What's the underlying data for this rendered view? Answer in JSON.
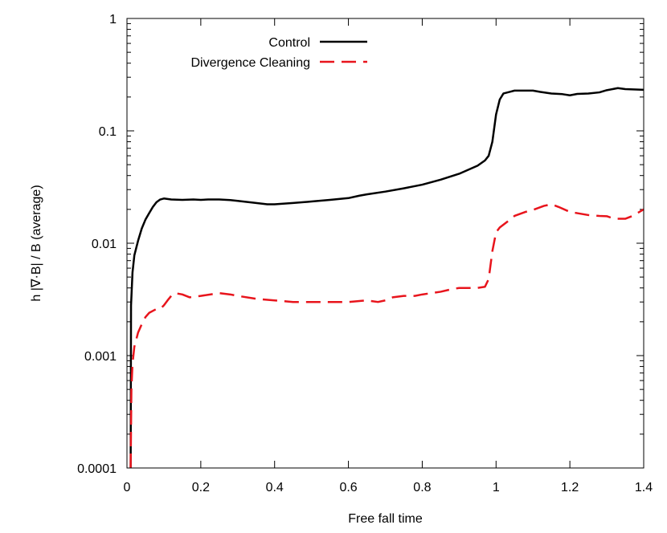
{
  "chart_data": {
    "type": "line",
    "xlabel": "Free fall time",
    "ylabel": "h |∇·B| / B (average)",
    "xlim": [
      0,
      1.4
    ],
    "ylim": [
      0.0001,
      1
    ],
    "yscale": "log",
    "xticks": [
      "0",
      "0.2",
      "0.4",
      "0.6",
      "0.8",
      "1",
      "1.2",
      "1.4"
    ],
    "yticks": [
      "0.0001",
      "0.001",
      "0.01",
      "0.1",
      "1"
    ],
    "legend_position": "top",
    "series": [
      {
        "name": "Control",
        "color": "#000000",
        "style": "solid",
        "points": [
          [
            0.01,
            0.0001
          ],
          [
            0.011,
            0.0028
          ],
          [
            0.015,
            0.0055
          ],
          [
            0.02,
            0.0078
          ],
          [
            0.03,
            0.0105
          ],
          [
            0.04,
            0.0135
          ],
          [
            0.05,
            0.0162
          ],
          [
            0.06,
            0.0185
          ],
          [
            0.07,
            0.021
          ],
          [
            0.08,
            0.0232
          ],
          [
            0.09,
            0.0245
          ],
          [
            0.1,
            0.025
          ],
          [
            0.12,
            0.0245
          ],
          [
            0.15,
            0.0243
          ],
          [
            0.18,
            0.0245
          ],
          [
            0.2,
            0.0243
          ],
          [
            0.22,
            0.0245
          ],
          [
            0.25,
            0.0245
          ],
          [
            0.28,
            0.0242
          ],
          [
            0.3,
            0.0238
          ],
          [
            0.35,
            0.0228
          ],
          [
            0.38,
            0.0222
          ],
          [
            0.4,
            0.0222
          ],
          [
            0.45,
            0.0228
          ],
          [
            0.5,
            0.0235
          ],
          [
            0.55,
            0.0243
          ],
          [
            0.6,
            0.0252
          ],
          [
            0.63,
            0.0265
          ],
          [
            0.65,
            0.0272
          ],
          [
            0.7,
            0.0288
          ],
          [
            0.75,
            0.0308
          ],
          [
            0.8,
            0.0332
          ],
          [
            0.85,
            0.0368
          ],
          [
            0.9,
            0.0415
          ],
          [
            0.95,
            0.049
          ],
          [
            0.97,
            0.0545
          ],
          [
            0.98,
            0.06
          ],
          [
            0.99,
            0.08
          ],
          [
            1.0,
            0.14
          ],
          [
            1.01,
            0.19
          ],
          [
            1.02,
            0.215
          ],
          [
            1.05,
            0.228
          ],
          [
            1.1,
            0.228
          ],
          [
            1.12,
            0.222
          ],
          [
            1.15,
            0.215
          ],
          [
            1.18,
            0.212
          ],
          [
            1.2,
            0.207
          ],
          [
            1.22,
            0.213
          ],
          [
            1.25,
            0.215
          ],
          [
            1.28,
            0.22
          ],
          [
            1.3,
            0.23
          ],
          [
            1.33,
            0.24
          ],
          [
            1.35,
            0.235
          ],
          [
            1.4,
            0.232
          ]
        ]
      },
      {
        "name": "Divergence Cleaning",
        "color": "#e8141c",
        "style": "dashed",
        "points": [
          [
            0.01,
            0.0001
          ],
          [
            0.012,
            0.0005
          ],
          [
            0.015,
            0.00085
          ],
          [
            0.02,
            0.0012
          ],
          [
            0.03,
            0.0016
          ],
          [
            0.04,
            0.0019
          ],
          [
            0.05,
            0.0022
          ],
          [
            0.06,
            0.0024
          ],
          [
            0.07,
            0.0025
          ],
          [
            0.08,
            0.0026
          ],
          [
            0.09,
            0.0026
          ],
          [
            0.1,
            0.0028
          ],
          [
            0.11,
            0.0031
          ],
          [
            0.12,
            0.0034
          ],
          [
            0.13,
            0.0036
          ],
          [
            0.15,
            0.0035
          ],
          [
            0.17,
            0.0033
          ],
          [
            0.2,
            0.0034
          ],
          [
            0.25,
            0.0036
          ],
          [
            0.28,
            0.0035
          ],
          [
            0.3,
            0.0034
          ],
          [
            0.35,
            0.0032
          ],
          [
            0.4,
            0.0031
          ],
          [
            0.45,
            0.003
          ],
          [
            0.5,
            0.003
          ],
          [
            0.55,
            0.003
          ],
          [
            0.6,
            0.003
          ],
          [
            0.65,
            0.0031
          ],
          [
            0.68,
            0.003
          ],
          [
            0.7,
            0.0031
          ],
          [
            0.72,
            0.0033
          ],
          [
            0.75,
            0.0034
          ],
          [
            0.78,
            0.0034
          ],
          [
            0.8,
            0.0035
          ],
          [
            0.85,
            0.0037
          ],
          [
            0.88,
            0.0039
          ],
          [
            0.9,
            0.004
          ],
          [
            0.95,
            0.004
          ],
          [
            0.97,
            0.0041
          ],
          [
            0.98,
            0.0048
          ],
          [
            0.99,
            0.0085
          ],
          [
            1.0,
            0.0125
          ],
          [
            1.01,
            0.0138
          ],
          [
            1.03,
            0.0155
          ],
          [
            1.05,
            0.0175
          ],
          [
            1.08,
            0.019
          ],
          [
            1.1,
            0.0198
          ],
          [
            1.13,
            0.0215
          ],
          [
            1.15,
            0.0222
          ],
          [
            1.17,
            0.021
          ],
          [
            1.2,
            0.019
          ],
          [
            1.25,
            0.0178
          ],
          [
            1.28,
            0.0175
          ],
          [
            1.3,
            0.0174
          ],
          [
            1.32,
            0.0165
          ],
          [
            1.35,
            0.0165
          ],
          [
            1.37,
            0.0175
          ],
          [
            1.4,
            0.02
          ]
        ]
      }
    ]
  }
}
